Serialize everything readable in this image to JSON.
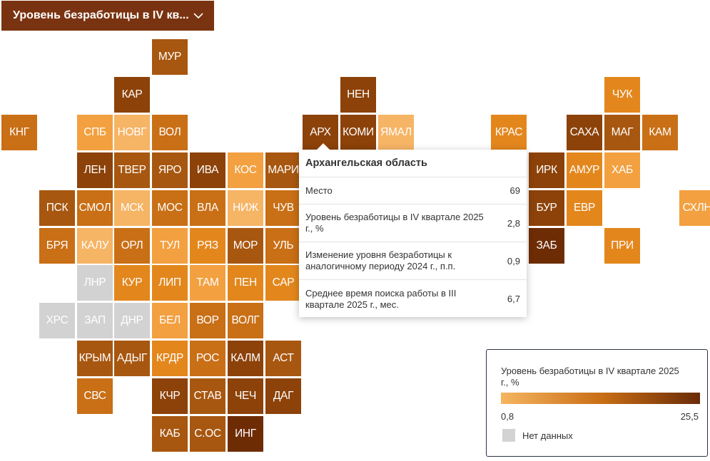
{
  "selector": {
    "label": "Уровень безработицы в IV кв..."
  },
  "colors": {
    "c1": "#f6b465",
    "c2": "#f3a040",
    "c3": "#e3871d",
    "c4": "#c96f16",
    "c5": "#a85710",
    "c6": "#8c4209",
    "c7": "#6e2c05",
    "na": "#d2d2d2"
  },
  "regions": [
    {
      "code": "МУР",
      "col": 4,
      "row": 0,
      "c": "c5"
    },
    {
      "code": "КАР",
      "col": 3,
      "row": 1,
      "c": "c6"
    },
    {
      "code": "НЕН",
      "col": 9,
      "row": 1,
      "c": "c6"
    },
    {
      "code": "ЧУК",
      "col": 16,
      "row": 1,
      "c": "c3"
    },
    {
      "code": "КНГ",
      "col": 0,
      "row": 2,
      "c": "c4"
    },
    {
      "code": "СПБ",
      "col": 2,
      "row": 2,
      "c": "c2"
    },
    {
      "code": "НОВГ",
      "col": 3,
      "row": 2,
      "c": "c1"
    },
    {
      "code": "ВОЛ",
      "col": 4,
      "row": 2,
      "c": "c4"
    },
    {
      "code": "АРХ",
      "col": 8,
      "row": 2,
      "c": "c6"
    },
    {
      "code": "КОМИ",
      "col": 9,
      "row": 2,
      "c": "c6"
    },
    {
      "code": "ЯМАЛ",
      "col": 10,
      "row": 2,
      "c": "c1"
    },
    {
      "code": "КРАС",
      "col": 13,
      "row": 2,
      "c": "c3"
    },
    {
      "code": "САХА",
      "col": 15,
      "row": 2,
      "c": "c6"
    },
    {
      "code": "МАГ",
      "col": 16,
      "row": 2,
      "c": "c5"
    },
    {
      "code": "КАМ",
      "col": 17,
      "row": 2,
      "c": "c4"
    },
    {
      "code": "ЛЕН",
      "col": 2,
      "row": 3,
      "c": "c6"
    },
    {
      "code": "ТВЕР",
      "col": 3,
      "row": 3,
      "c": "c5"
    },
    {
      "code": "ЯРО",
      "col": 4,
      "row": 3,
      "c": "c5"
    },
    {
      "code": "ИВА",
      "col": 5,
      "row": 3,
      "c": "c6"
    },
    {
      "code": "КОС",
      "col": 6,
      "row": 3,
      "c": "c2"
    },
    {
      "code": "МАРИ",
      "col": 7,
      "row": 3,
      "c": "c5"
    },
    {
      "code": "ИРК",
      "col": 14,
      "row": 3,
      "c": "c6"
    },
    {
      "code": "АМУР",
      "col": 15,
      "row": 3,
      "c": "c3"
    },
    {
      "code": "ХАБ",
      "col": 16,
      "row": 3,
      "c": "c2"
    },
    {
      "code": "ПСК",
      "col": 1,
      "row": 4,
      "c": "c5"
    },
    {
      "code": "СМОЛ",
      "col": 2,
      "row": 4,
      "c": "c4"
    },
    {
      "code": "МСК",
      "col": 3,
      "row": 4,
      "c": "c1"
    },
    {
      "code": "МОС",
      "col": 4,
      "row": 4,
      "c": "c4"
    },
    {
      "code": "ВЛА",
      "col": 5,
      "row": 4,
      "c": "c4"
    },
    {
      "code": "НИЖ",
      "col": 6,
      "row": 4,
      "c": "c1"
    },
    {
      "code": "ЧУВ",
      "col": 7,
      "row": 4,
      "c": "c4"
    },
    {
      "code": "БУР",
      "col": 14,
      "row": 4,
      "c": "c6"
    },
    {
      "code": "ЕВР",
      "col": 15,
      "row": 4,
      "c": "c3"
    },
    {
      "code": "СХЛН",
      "col": 18,
      "row": 4,
      "c": "c2"
    },
    {
      "code": "БРЯ",
      "col": 1,
      "row": 5,
      "c": "c4"
    },
    {
      "code": "КАЛУ",
      "col": 2,
      "row": 5,
      "c": "c1"
    },
    {
      "code": "ОРЛ",
      "col": 3,
      "row": 5,
      "c": "c4"
    },
    {
      "code": "ТУЛ",
      "col": 4,
      "row": 5,
      "c": "c2"
    },
    {
      "code": "РЯЗ",
      "col": 5,
      "row": 5,
      "c": "c3"
    },
    {
      "code": "МОР",
      "col": 6,
      "row": 5,
      "c": "c5"
    },
    {
      "code": "УЛЬ",
      "col": 7,
      "row": 5,
      "c": "c4"
    },
    {
      "code": "ЗАБ",
      "col": 14,
      "row": 5,
      "c": "c7"
    },
    {
      "code": "ПРИ",
      "col": 16,
      "row": 5,
      "c": "c3"
    },
    {
      "code": "ЛНР",
      "col": 2,
      "row": 6,
      "c": "na"
    },
    {
      "code": "КУР",
      "col": 3,
      "row": 6,
      "c": "c3"
    },
    {
      "code": "ЛИП",
      "col": 4,
      "row": 6,
      "c": "c3"
    },
    {
      "code": "ТАМ",
      "col": 5,
      "row": 6,
      "c": "c2"
    },
    {
      "code": "ПЕН",
      "col": 6,
      "row": 6,
      "c": "c3"
    },
    {
      "code": "САР",
      "col": 7,
      "row": 6,
      "c": "c3"
    },
    {
      "code": "ХРС",
      "col": 1,
      "row": 7,
      "c": "na"
    },
    {
      "code": "ЗАП",
      "col": 2,
      "row": 7,
      "c": "na"
    },
    {
      "code": "ДНР",
      "col": 3,
      "row": 7,
      "c": "na"
    },
    {
      "code": "БЕЛ",
      "col": 4,
      "row": 7,
      "c": "c2"
    },
    {
      "code": "ВОР",
      "col": 5,
      "row": 7,
      "c": "c4"
    },
    {
      "code": "ВОЛГ",
      "col": 6,
      "row": 7,
      "c": "c4"
    },
    {
      "code": "КРЫМ",
      "col": 2,
      "row": 8,
      "c": "c5"
    },
    {
      "code": "АДЫГ",
      "col": 3,
      "row": 8,
      "c": "c5"
    },
    {
      "code": "КРДР",
      "col": 4,
      "row": 8,
      "c": "c3"
    },
    {
      "code": "РОС",
      "col": 5,
      "row": 8,
      "c": "c4"
    },
    {
      "code": "КАЛМ",
      "col": 6,
      "row": 8,
      "c": "c6"
    },
    {
      "code": "АСТ",
      "col": 7,
      "row": 8,
      "c": "c5"
    },
    {
      "code": "СВС",
      "col": 2,
      "row": 9,
      "c": "c4"
    },
    {
      "code": "КЧР",
      "col": 4,
      "row": 9,
      "c": "c6"
    },
    {
      "code": "СТАВ",
      "col": 5,
      "row": 9,
      "c": "c5"
    },
    {
      "code": "ЧЕЧ",
      "col": 6,
      "row": 9,
      "c": "c6"
    },
    {
      "code": "ДАГ",
      "col": 7,
      "row": 9,
      "c": "c6"
    },
    {
      "code": "КАБ",
      "col": 4,
      "row": 10,
      "c": "c5"
    },
    {
      "code": "С.ОС",
      "col": 5,
      "row": 10,
      "c": "c5"
    },
    {
      "code": "ИНГ",
      "col": 6,
      "row": 10,
      "c": "c7"
    }
  ],
  "tooltip": {
    "title": "Архангельская область",
    "rows": [
      {
        "label": "Место",
        "value": "69"
      },
      {
        "label": "Уровень безработицы в IV квартале 2025 г., %",
        "value": "2,8"
      },
      {
        "label": "Изменение уровня безработицы к аналогичному периоду 2024 г., п.п.",
        "value": "0,9"
      },
      {
        "label": "Среднее время поиска работы в III квартале 2025 г., мес.",
        "value": "6,7"
      }
    ]
  },
  "legend": {
    "title": "Уровень безработицы в IV квартале 2025 г., %",
    "min": "0,8",
    "max": "25,5",
    "no_data": "Нет данных"
  }
}
